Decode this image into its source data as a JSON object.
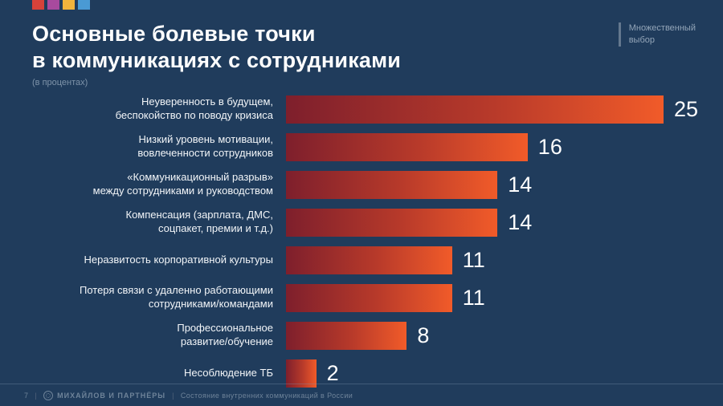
{
  "header": {
    "title": "Основные болевые точки\nв коммуникациях с сотрудниками",
    "subtitle": "(в процентах)"
  },
  "meta": {
    "badge": "Множественный\nвыбор",
    "page_number": "7",
    "brand": "МИХАЙЛОВ И ПАРТНЁРЫ",
    "footer_note": "Состояние внутренних коммуникаций в России"
  },
  "logo_colors": [
    "#d6423a",
    "#a84a9e",
    "#f0b43c",
    "#4a9ad4"
  ],
  "chart_data": {
    "type": "bar",
    "orientation": "horizontal",
    "title": "Основные болевые точки в коммуникациях с сотрудниками",
    "xlabel": "",
    "ylabel": "",
    "xlim": [
      0,
      25
    ],
    "grid": false,
    "legend": "none",
    "bar_gradient": [
      "#7e1f2c",
      "#f15b29"
    ],
    "categories": [
      "Неуверенность в будущем,\nбеспокойство по поводу кризиса",
      "Низкий уровень мотивации,\nвовлеченности сотрудников",
      "«Коммуникационный разрыв»\nмежду сотрудниками и руководством",
      "Компенсация (зарплата, ДМС,\nсоцпакет, премии и т.д.)",
      "Неразвитость корпоративной культуры",
      "Потеря связи с удаленно работающими\nсотрудниками/командами",
      "Профессиональное\nразвитие/обучение",
      "Несоблюдение ТБ"
    ],
    "values": [
      25,
      16,
      14,
      14,
      11,
      11,
      8,
      2
    ]
  }
}
